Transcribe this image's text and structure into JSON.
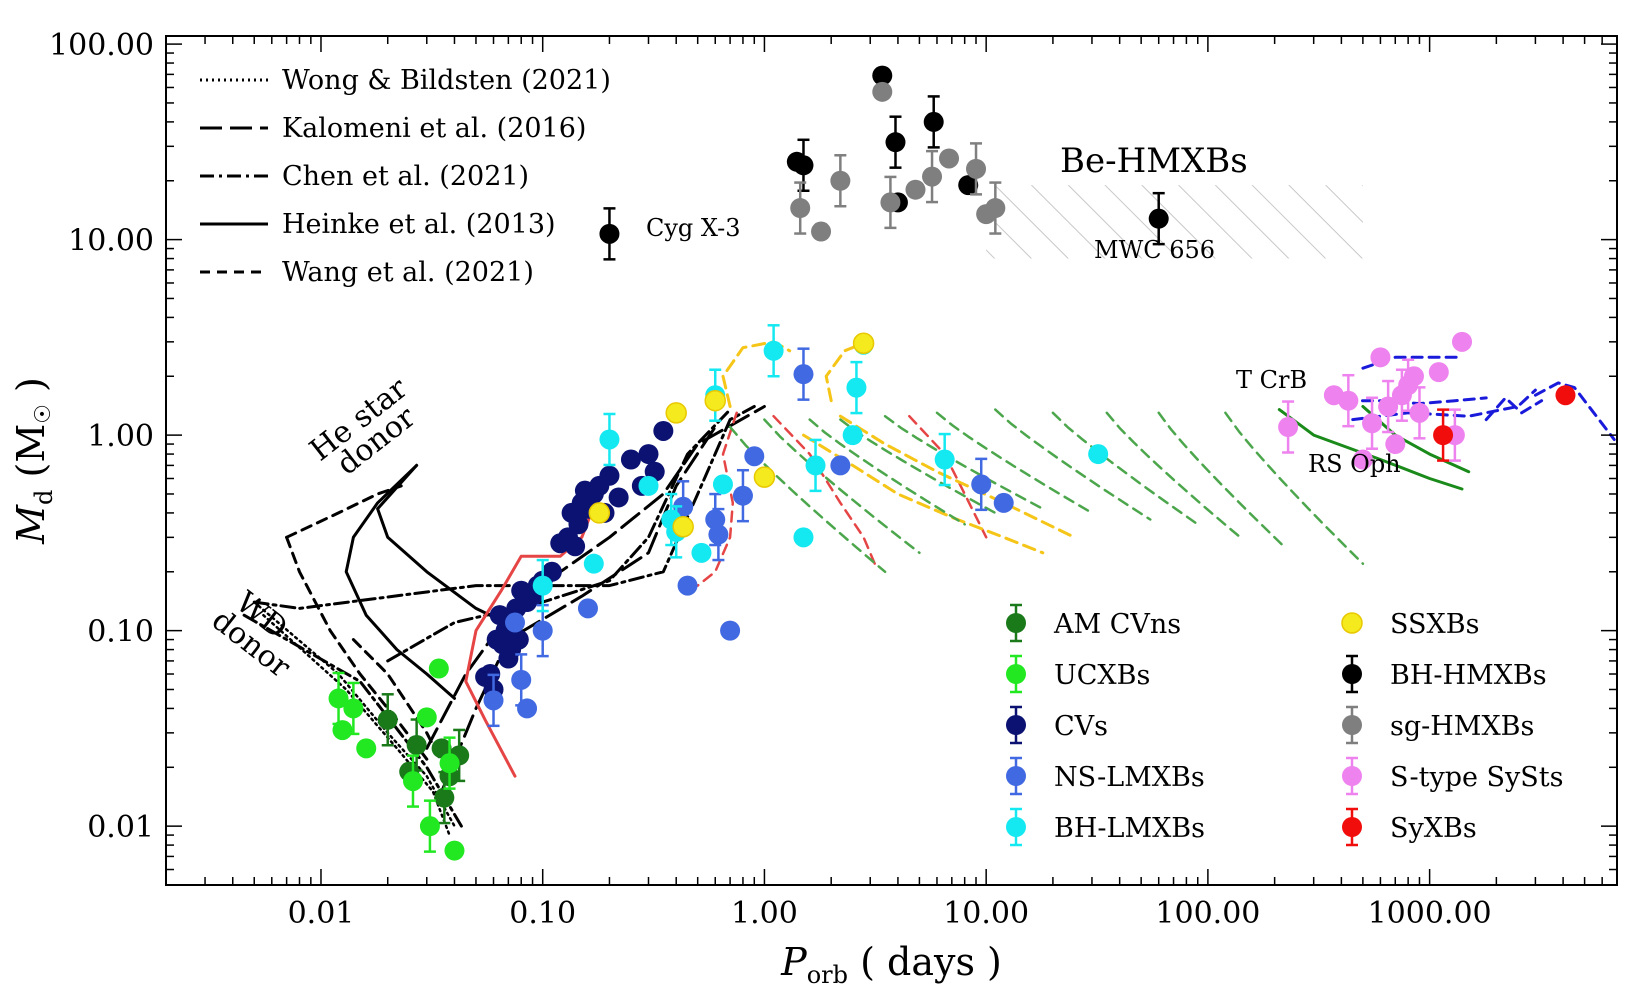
{
  "chart_data": {
    "type": "scatter",
    "xscale": "log",
    "yscale": "log",
    "xlim": [
      0.002,
      7000
    ],
    "ylim": [
      0.005,
      110
    ],
    "xticks": [
      0.01,
      0.1,
      1,
      10,
      100,
      1000
    ],
    "xtick_labels": [
      "0.01",
      "0.10",
      "1.00",
      "10.00",
      "100.00",
      "1000.00"
    ],
    "yticks": [
      0.01,
      0.1,
      1,
      10,
      100
    ],
    "ytick_labels": [
      "0.01",
      "0.10",
      "1.00",
      "10.00",
      "100.00"
    ],
    "xlabel": {
      "main": "P",
      "sub": "orb",
      "rest": " ( days )"
    },
    "ylabel": {
      "main": "M",
      "sub": "d",
      "rest": " (M",
      "sun": "☉",
      "close": " )"
    },
    "grid": false,
    "colors": {
      "am_cvns": "#1a7a1a",
      "ucxbs": "#22e822",
      "cvs": "#0b1272",
      "ns_lmxbs": "#4169e1",
      "bh_lmxbs": "#14e8f0",
      "ssxbs": "#f5ea1e",
      "bh_hmxbs": "#000000",
      "sg_hmxbs": "#7f7f7f",
      "s_type_systs": "#ee82ee",
      "syxbs": "#f20d0d",
      "hatch": "#c0c0c0",
      "track_green": "#4ca64c",
      "track_gold": "#f5c518",
      "track_red": "#e64545",
      "track_blue": "#1a1adb"
    },
    "legend_left": {
      "placement": "top-left",
      "entries": [
        {
          "label": "Wong & Bildsten (2021)",
          "style": "dotted"
        },
        {
          "label": "Kalomeni et al. (2016)",
          "style": "longdash"
        },
        {
          "label": "Chen et al. (2021)",
          "style": "dashdot"
        },
        {
          "label": "Heinke et al. (2013)",
          "style": "solid"
        },
        {
          "label": "Wang et al. (2021)",
          "style": "dashed"
        }
      ]
    },
    "legend_right": {
      "placement": "lower-right",
      "entries": [
        {
          "label": "AM CVns",
          "key": "am_cvns"
        },
        {
          "label": "UCXBs",
          "key": "ucxbs"
        },
        {
          "label": "CVs",
          "key": "cvs"
        },
        {
          "label": "NS-LMXBs",
          "key": "ns_lmxbs"
        },
        {
          "label": "BH-LMXBs",
          "key": "bh_lmxbs"
        },
        {
          "label": "SSXBs",
          "key": "ssxbs"
        },
        {
          "label": "BH-HMXBs",
          "key": "bh_hmxbs"
        },
        {
          "label": "sg-HMXBs",
          "key": "sg_hmxbs"
        },
        {
          "label": "S-type SySts",
          "key": "s_type_systs"
        },
        {
          "label": "SyXBs",
          "key": "syxbs"
        }
      ]
    },
    "annotations": {
      "be_hmxbs": "Be-HMXBs",
      "cyg_x3": "Cyg X-3",
      "mwc656": "MWC 656",
      "t_crb": "T CrB",
      "rs_oph": "RS Oph",
      "he_star_1": "He star",
      "he_star_2": "donor",
      "wd_1": "WD",
      "wd_2": "donor"
    },
    "series": [
      {
        "key": "am_cvns",
        "points": [
          [
            0.02,
            0.035
          ],
          [
            0.025,
            0.019
          ],
          [
            0.027,
            0.026
          ],
          [
            0.035,
            0.025
          ],
          [
            0.036,
            0.014
          ],
          [
            0.038,
            0.018
          ],
          [
            0.042,
            0.023
          ]
        ]
      },
      {
        "key": "ucxbs",
        "points": [
          [
            0.012,
            0.045
          ],
          [
            0.0125,
            0.031
          ],
          [
            0.014,
            0.04
          ],
          [
            0.016,
            0.025
          ],
          [
            0.026,
            0.017
          ],
          [
            0.03,
            0.036
          ],
          [
            0.031,
            0.01
          ],
          [
            0.034,
            0.064
          ],
          [
            0.038,
            0.021
          ],
          [
            0.04,
            0.0075
          ]
        ]
      },
      {
        "key": "cvs",
        "points": [
          [
            0.055,
            0.058
          ],
          [
            0.058,
            0.06
          ],
          [
            0.06,
            0.05
          ],
          [
            0.062,
            0.09
          ],
          [
            0.064,
            0.12
          ],
          [
            0.066,
            0.085
          ],
          [
            0.068,
            0.1
          ],
          [
            0.07,
            0.072
          ],
          [
            0.072,
            0.08
          ],
          [
            0.074,
            0.11
          ],
          [
            0.076,
            0.13
          ],
          [
            0.078,
            0.09
          ],
          [
            0.08,
            0.16
          ],
          [
            0.085,
            0.14
          ],
          [
            0.09,
            0.15
          ],
          [
            0.1,
            0.18
          ],
          [
            0.11,
            0.2
          ],
          [
            0.12,
            0.28
          ],
          [
            0.13,
            0.3
          ],
          [
            0.14,
            0.27
          ],
          [
            0.15,
            0.45
          ],
          [
            0.155,
            0.52
          ],
          [
            0.16,
            0.42
          ],
          [
            0.17,
            0.5
          ],
          [
            0.18,
            0.55
          ],
          [
            0.19,
            0.4
          ],
          [
            0.2,
            0.62
          ],
          [
            0.22,
            0.48
          ],
          [
            0.25,
            0.75
          ],
          [
            0.28,
            0.55
          ],
          [
            0.3,
            0.8
          ],
          [
            0.32,
            0.65
          ],
          [
            0.35,
            1.05
          ],
          [
            0.145,
            0.35
          ],
          [
            0.135,
            0.4
          ],
          [
            0.095,
            0.17
          ]
        ]
      },
      {
        "key": "ns_lmxbs",
        "points": [
          [
            0.06,
            0.044
          ],
          [
            0.075,
            0.11
          ],
          [
            0.08,
            0.056
          ],
          [
            0.085,
            0.04
          ],
          [
            0.1,
            0.1
          ],
          [
            0.16,
            0.13
          ],
          [
            0.43,
            0.43
          ],
          [
            0.45,
            0.17
          ],
          [
            0.62,
            0.31
          ],
          [
            0.7,
            0.1
          ],
          [
            0.8,
            0.49
          ],
          [
            0.9,
            0.78
          ],
          [
            1.5,
            2.05
          ],
          [
            2.2,
            0.7
          ],
          [
            9.5,
            0.56
          ],
          [
            12,
            0.45
          ],
          [
            0.6,
            0.37
          ]
        ]
      },
      {
        "key": "bh_lmxbs",
        "points": [
          [
            0.1,
            0.17
          ],
          [
            0.17,
            0.22
          ],
          [
            0.2,
            0.95
          ],
          [
            0.3,
            0.55
          ],
          [
            0.4,
            0.32
          ],
          [
            0.52,
            0.25
          ],
          [
            0.6,
            1.6
          ],
          [
            0.65,
            0.56
          ],
          [
            1.1,
            2.7
          ],
          [
            1.5,
            0.3
          ],
          [
            1.7,
            0.7
          ],
          [
            2.5,
            1.0
          ],
          [
            2.6,
            1.75
          ],
          [
            2.8,
            2.9
          ],
          [
            6.5,
            0.75
          ],
          [
            32,
            0.8
          ],
          [
            0.38,
            0.37
          ]
        ]
      },
      {
        "key": "ssxbs",
        "points": [
          [
            0.18,
            0.4
          ],
          [
            0.4,
            1.3
          ],
          [
            0.43,
            0.34
          ],
          [
            0.6,
            1.5
          ],
          [
            1.0,
            0.61
          ],
          [
            2.8,
            2.95
          ]
        ]
      },
      {
        "key": "bh_hmxbs",
        "points": [
          [
            0.2,
            10.7
          ],
          [
            1.4,
            25
          ],
          [
            1.5,
            24
          ],
          [
            3.4,
            69
          ],
          [
            3.9,
            31.5
          ],
          [
            4.0,
            15.5
          ],
          [
            5.8,
            40
          ],
          [
            8.3,
            19
          ],
          [
            60,
            12.8
          ]
        ]
      },
      {
        "key": "sg_hmxbs",
        "points": [
          [
            1.45,
            14.5
          ],
          [
            1.8,
            11
          ],
          [
            2.2,
            20
          ],
          [
            3.4,
            57
          ],
          [
            3.7,
            15.5
          ],
          [
            4.8,
            18
          ],
          [
            5.7,
            21
          ],
          [
            6.8,
            26
          ],
          [
            9.0,
            23
          ],
          [
            10,
            13.5
          ],
          [
            11,
            14.5
          ]
        ]
      },
      {
        "key": "s_type_systs",
        "points": [
          [
            230,
            1.1
          ],
          [
            370,
            1.6
          ],
          [
            430,
            1.5
          ],
          [
            500,
            0.75
          ],
          [
            550,
            1.15
          ],
          [
            600,
            2.5
          ],
          [
            650,
            1.4
          ],
          [
            700,
            0.9
          ],
          [
            800,
            1.8
          ],
          [
            850,
            2.0
          ],
          [
            900,
            1.3
          ],
          [
            1100,
            2.1
          ],
          [
            1300,
            1.0
          ],
          [
            1400,
            3.0
          ],
          [
            750,
            1.6
          ]
        ]
      },
      {
        "key": "syxbs",
        "points": [
          [
            1150,
            1.0
          ],
          [
            4100,
            1.6
          ]
        ]
      }
    ]
  }
}
